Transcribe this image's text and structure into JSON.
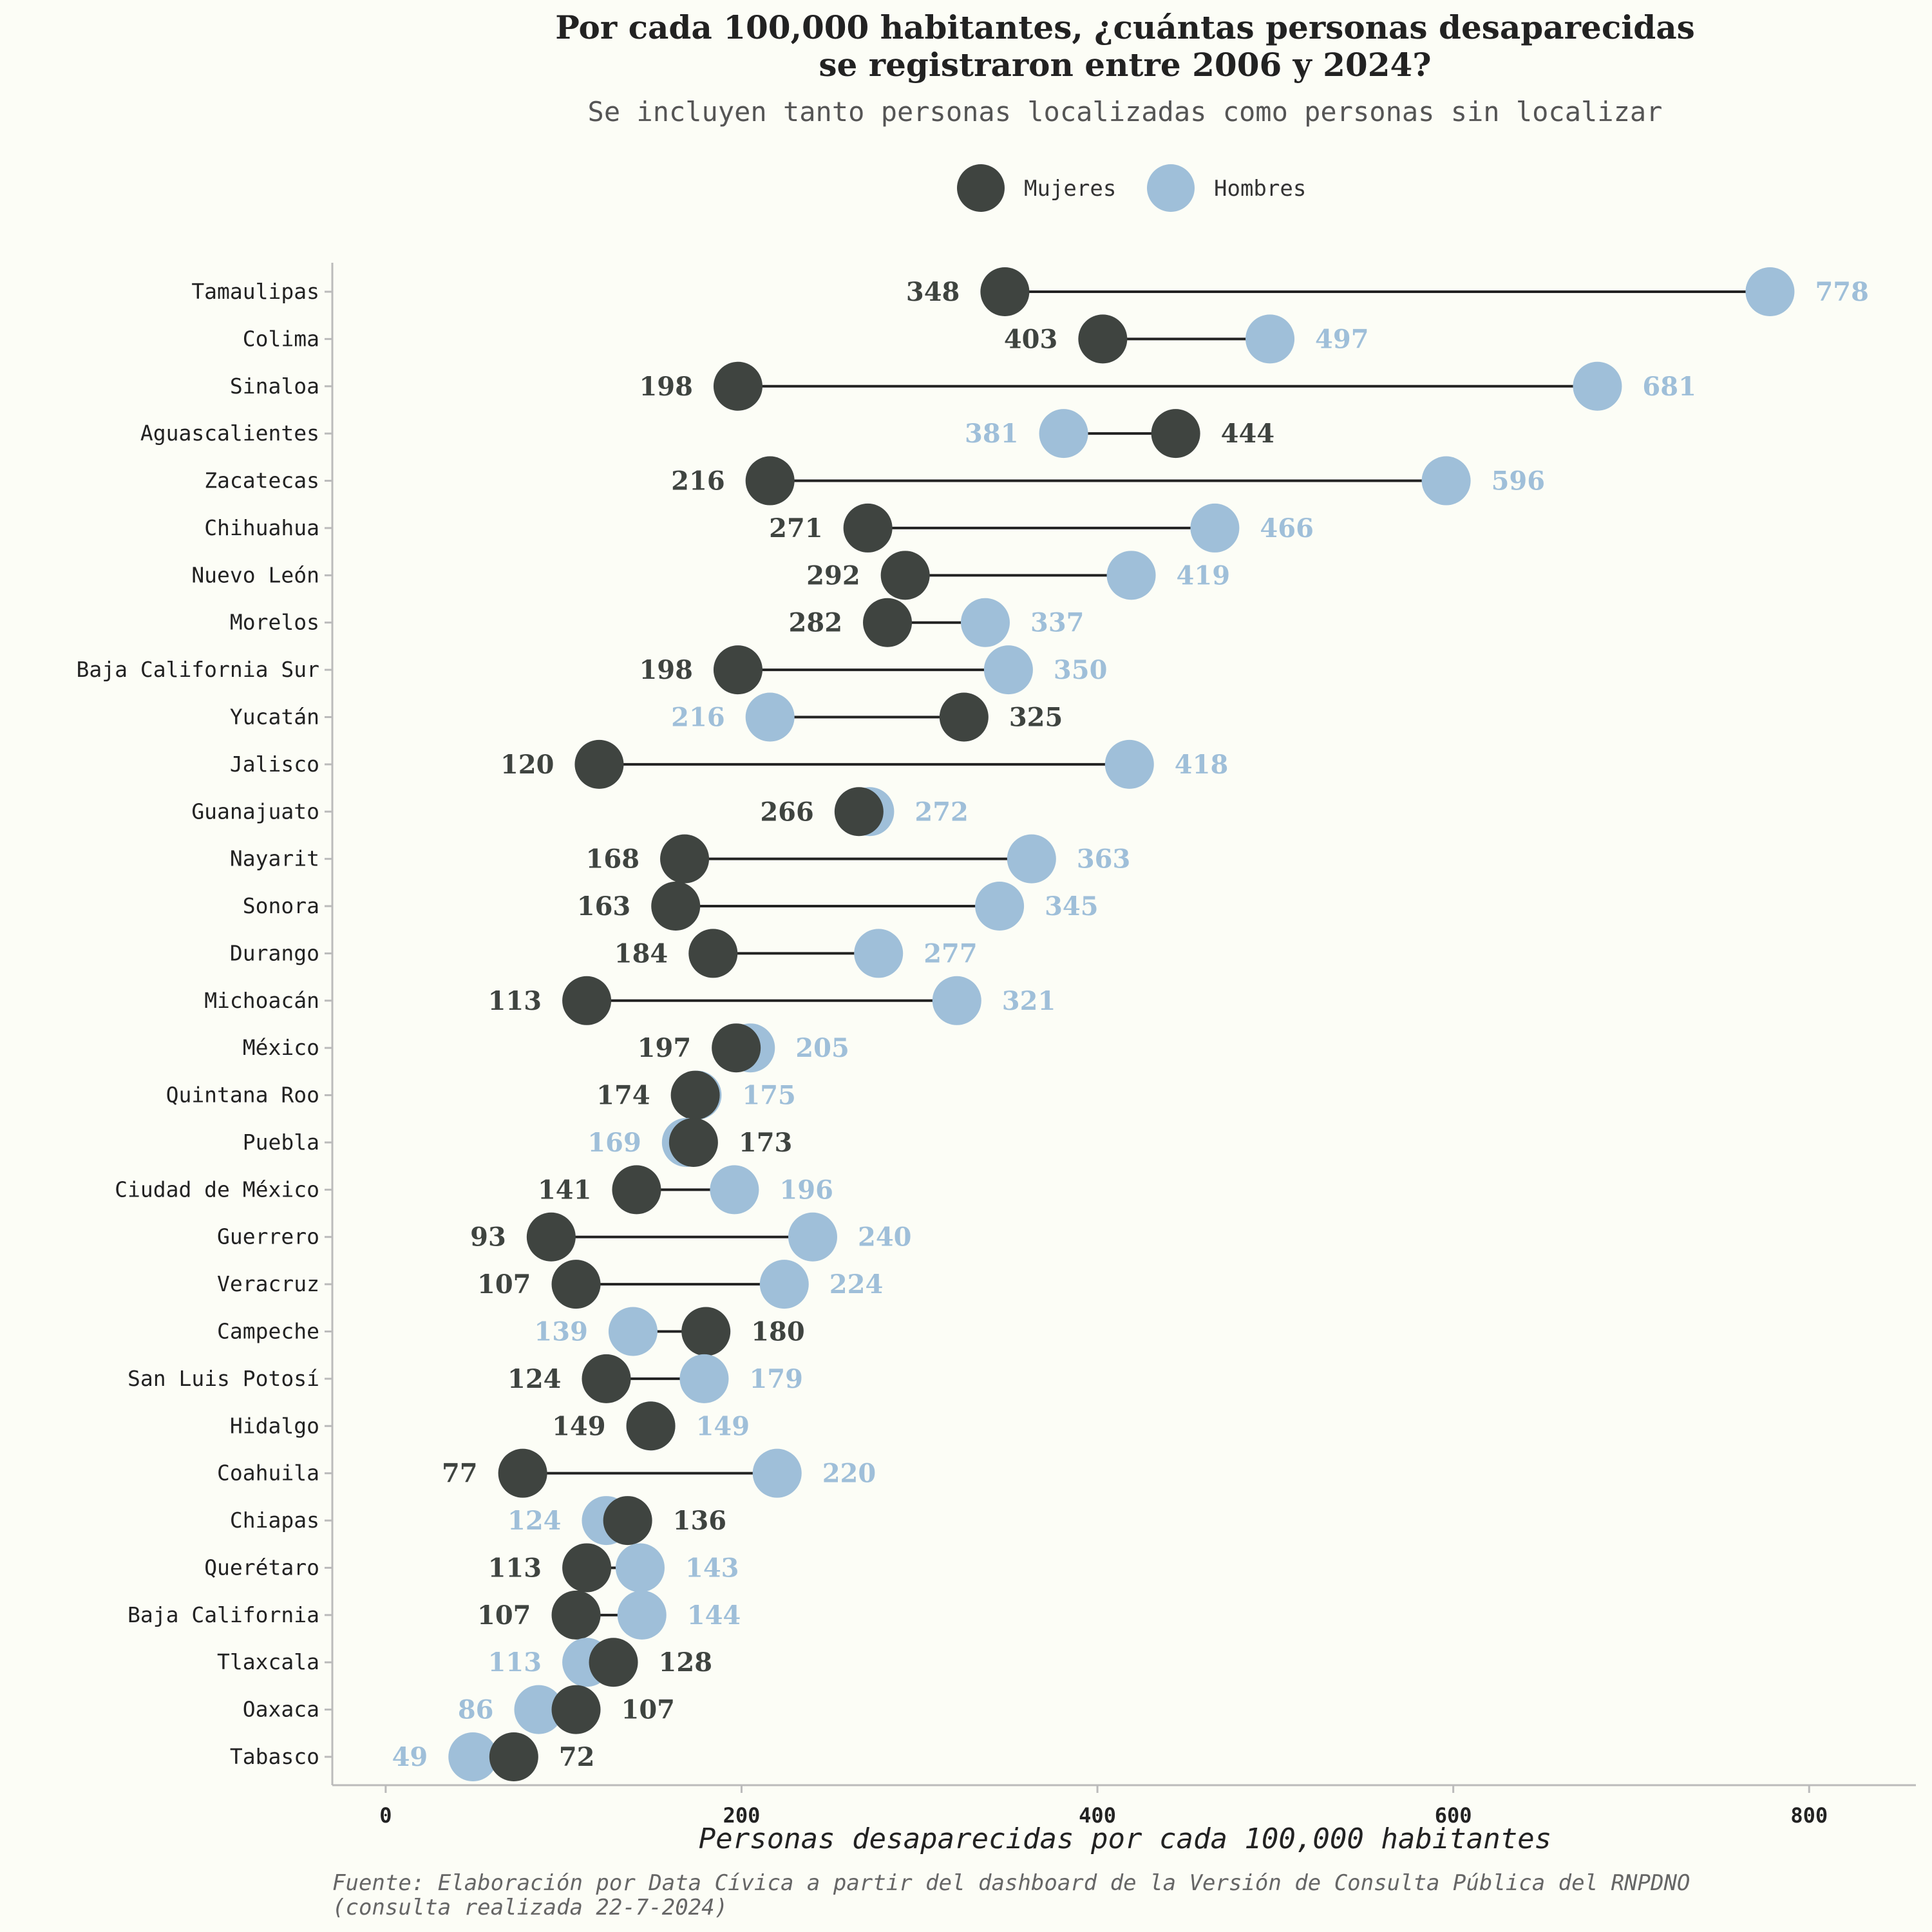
{
  "chart_data": {
    "type": "dumbbell",
    "title": "Por cada 100,000 habitantes, ¿cuántas personas desaparecidas se registraron entre 2006 y 2024?",
    "title_lines": [
      "Por cada 100,000 habitantes, ¿cuántas personas desaparecidas",
      "se registraron entre 2006 y 2024?"
    ],
    "subtitle": "Se incluyen tanto personas localizadas como personas sin localizar",
    "xlabel": "Personas desaparecidas por cada 100,000 habitantes",
    "ylabel": "",
    "xlim": [
      -30,
      860
    ],
    "x_ticks": [
      0,
      200,
      400,
      600,
      800
    ],
    "legend_position": "top-center",
    "grid": false,
    "source_lines": [
      "Fuente: Elaboración por Data Cívica a partir del dashboard de la Versión de Consulta Pública del RNPDNO",
      "(consulta realizada 22-7-2024)"
    ],
    "series": [
      {
        "name": "Mujeres",
        "color": "#3f4440"
      },
      {
        "name": "Hombres",
        "color": "#9fbfd9"
      }
    ],
    "categories": [
      "Tamaulipas",
      "Colima",
      "Sinaloa",
      "Aguascalientes",
      "Zacatecas",
      "Chihuahua",
      "Nuevo León",
      "Morelos",
      "Baja California Sur",
      "Yucatán",
      "Jalisco",
      "Guanajuato",
      "Nayarit",
      "Sonora",
      "Durango",
      "Michoacán",
      "México",
      "Quintana Roo",
      "Puebla",
      "Ciudad de México",
      "Guerrero",
      "Veracruz",
      "Campeche",
      "San Luis Potosí",
      "Hidalgo",
      "Coahuila",
      "Chiapas",
      "Querétaro",
      "Baja California",
      "Tlaxcala",
      "Oaxaca",
      "Tabasco"
    ],
    "mujeres": [
      348,
      403,
      198,
      444,
      216,
      271,
      292,
      282,
      198,
      325,
      120,
      266,
      168,
      163,
      184,
      113,
      197,
      174,
      173,
      141,
      93,
      107,
      180,
      124,
      149,
      77,
      136,
      113,
      107,
      128,
      107,
      72
    ],
    "hombres": [
      778,
      497,
      681,
      381,
      596,
      466,
      419,
      337,
      350,
      216,
      418,
      272,
      363,
      345,
      277,
      321,
      205,
      175,
      169,
      196,
      240,
      224,
      139,
      179,
      149,
      220,
      124,
      143,
      144,
      113,
      86,
      49
    ]
  }
}
